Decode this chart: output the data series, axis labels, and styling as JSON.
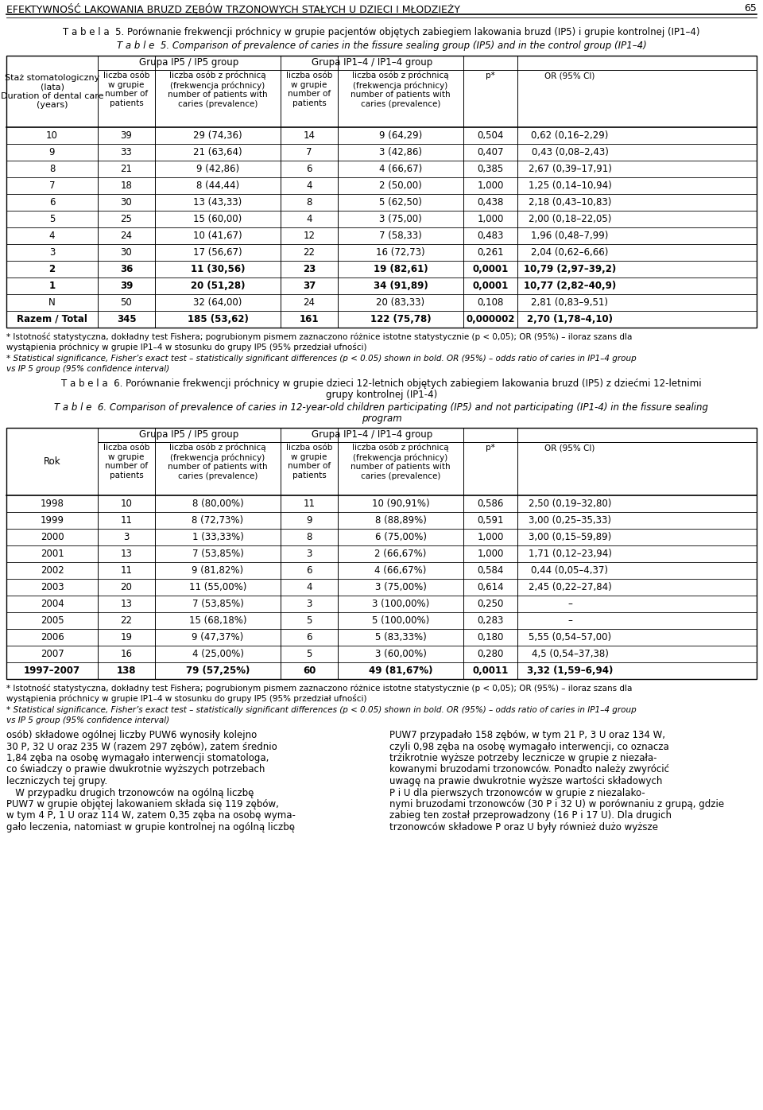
{
  "page_title": "EFEKTYWNOŚĆ LAKOWANIA BRUZD ZĘBÓW TRZONOWYCH STAŁYCH U DZIECI I MŁODZIEŻY",
  "page_number": "65",
  "table5_title_pl": "T a b e l a  5. Porównanie frekwencji próchnicy w grupie pacjentów objętych zabiegiem lakowania bruzd (IP5) i grupie kontrolnej (IP1–4)",
  "table5_title_en": "T a b l e  5. Comparison of prevalence of caries in the fissure sealing group (IP5) and in the control group (IP1–4)",
  "table5_header_group1": "Grupa IP5 / IP5 group",
  "table5_header_group2": "Grupa IP1–4 / IP1–4 group",
  "table5_col0_header": "Staż stomatologiczny\n(lata)\nDuration of dental care\n(years)",
  "table5_col1_header": "liczba osób\nw grupie\nnumber of\npatients",
  "table5_col2_header": "liczba osób z próchnicą\n(frekwencja próchnicy)\nnumber of patients with\ncaries (prevalence)",
  "table5_col3_header": "liczba osób\nw grupie\nnumber of\npatients",
  "table5_col4_header": "liczba osób z próchnicą\n(frekwencja próchnicy)\nnumber of patients with\ncaries (prevalence)",
  "table5_col5_header": "p*",
  "table5_col6_header": "OR (95% CI)",
  "table5_data": [
    [
      "10",
      "39",
      "29 (74,36)",
      "14",
      "9 (64,29)",
      "0,504",
      "0,62 (0,16–2,29)"
    ],
    [
      "9",
      "33",
      "21 (63,64)",
      "7",
      "3 (42,86)",
      "0,407",
      "0,43 (0,08–2,43)"
    ],
    [
      "8",
      "21",
      "9 (42,86)",
      "6",
      "4 (66,67)",
      "0,385",
      "2,67 (0,39–17,91)"
    ],
    [
      "7",
      "18",
      "8 (44,44)",
      "4",
      "2 (50,00)",
      "1,000",
      "1,25 (0,14–10,94)"
    ],
    [
      "6",
      "30",
      "13 (43,33)",
      "8",
      "5 (62,50)",
      "0,438",
      "2,18 (0,43–10,83)"
    ],
    [
      "5",
      "25",
      "15 (60,00)",
      "4",
      "3 (75,00)",
      "1,000",
      "2,00 (0,18–22,05)"
    ],
    [
      "4",
      "24",
      "10 (41,67)",
      "12",
      "7 (58,33)",
      "0,483",
      "1,96 (0,48–7,99)"
    ],
    [
      "3",
      "30",
      "17 (56,67)",
      "22",
      "16 (72,73)",
      "0,261",
      "2,04 (0,62–6,66)"
    ],
    [
      "2",
      "36",
      "11 (30,56)",
      "23",
      "19 (82,61)",
      "0,0001",
      "10,79 (2,97–39,2)"
    ],
    [
      "1",
      "39",
      "20 (51,28)",
      "37",
      "34 (91,89)",
      "0,0001",
      "10,77 (2,82–40,9)"
    ],
    [
      "N",
      "50",
      "32 (64,00)",
      "24",
      "20 (83,33)",
      "0,108",
      "2,81 (0,83–9,51)"
    ],
    [
      "Razem / Total",
      "345",
      "185 (53,62)",
      "161",
      "122 (75,78)",
      "0,000002",
      "2,70 (1,78–4,10)"
    ]
  ],
  "table5_bold_rows": [
    8,
    9,
    11
  ],
  "table5_footnote1": "* Istotność statystyczna, dokładny test Fishera; pogrubionym pismem zaznaczono różnice istotne statystycznie (p < 0,05); OR (95%) – iloraz szans dla",
  "table5_footnote2": "wystąpienia próchnicy w grupie IP1–4 w stosunku do grupy IP5 (95% przedział ufności)",
  "table5_footnote3": "* Statistical significance, Fisher’s exact test – statistically significant differences (p < 0.05) shown in bold. OR (95%) – odds ratio of caries in IP1–4 group",
  "table5_footnote4": "vs IP 5 group (95% confidence interval)",
  "table6_title_pl1": "T a b e l a  6. Porównanie frekwencji próchnicy w grupie dzieci 12-letnich objętych zabiegiem lakowania bruzd (IP5) z dziećmi 12-letnimi",
  "table6_title_pl2": "grupy kontrolnej (IP1-4)",
  "table6_title_en1": "T a b l e  6. Comparison of prevalence of caries in 12-year-old children participating (IP5) and not participating (IP1-4) in the fissure sealing",
  "table6_title_en2": "program",
  "table6_header_group1": "Grupa IP5 / IP5 group",
  "table6_header_group2": "Grupa IP1–4 / IP1–4 group",
  "table6_col0_header": "Rok",
  "table6_col1_header": "liczba osób\nw grupie\nnumber of\npatients",
  "table6_col2_header": "liczba osób z próchnicą\n(frekwencja próchnicy)\nnumber of patients with\ncaries (prevalence)",
  "table6_col3_header": "liczba osób\nw grupie\nnumber of\npatients",
  "table6_col4_header": "liczba osób z próchnicą\n(frekwencja próchnicy)\nnumber of patients with\ncaries (prevalence)",
  "table6_col5_header": "p*",
  "table6_col6_header": "OR (95% CI)",
  "table6_data": [
    [
      "1998",
      "10",
      "8 (80,00%)",
      "11",
      "10 (90,91%)",
      "0,586",
      "2,50 (0,19–32,80)"
    ],
    [
      "1999",
      "11",
      "8 (72,73%)",
      "9",
      "8 (88,89%)",
      "0,591",
      "3,00 (0,25–35,33)"
    ],
    [
      "2000",
      "3",
      "1 (33,33%)",
      "8",
      "6 (75,00%)",
      "1,000",
      "3,00 (0,15–59,89)"
    ],
    [
      "2001",
      "13",
      "7 (53,85%)",
      "3",
      "2 (66,67%)",
      "1,000",
      "1,71 (0,12–23,94)"
    ],
    [
      "2002",
      "11",
      "9 (81,82%)",
      "6",
      "4 (66,67%)",
      "0,584",
      "0,44 (0,05–4,37)"
    ],
    [
      "2003",
      "20",
      "11 (55,00%)",
      "4",
      "3 (75,00%)",
      "0,614",
      "2,45 (0,22–27,84)"
    ],
    [
      "2004",
      "13",
      "7 (53,85%)",
      "3",
      "3 (100,00%)",
      "0,250",
      "–"
    ],
    [
      "2005",
      "22",
      "15 (68,18%)",
      "5",
      "5 (100,00%)",
      "0,283",
      "–"
    ],
    [
      "2006",
      "19",
      "9 (47,37%)",
      "6",
      "5 (83,33%)",
      "0,180",
      "5,55 (0,54–57,00)"
    ],
    [
      "2007",
      "16",
      "4 (25,00%)",
      "5",
      "3 (60,00%)",
      "0,280",
      "4,5 (0,54–37,38)"
    ],
    [
      "1997–2007",
      "138",
      "79 (57,25%)",
      "60",
      "49 (81,67%)",
      "0,0011",
      "3,32 (1,59–6,94)"
    ]
  ],
  "table6_bold_rows": [
    10
  ],
  "table6_footnote1": "* Istotność statystyczna, dokładny test Fishera; pogrubionym pismem zaznaczono różnice istotne statystycznie (p < 0,05); OR (95%) – iloraz szans dla",
  "table6_footnote2": "wystąpienia próchnicy w grupie IP1–4 w stosunku do grupy IP5 (95% przedział ufności)",
  "table6_footnote3": "* Statistical significance, Fisher’s exact test – statistically significant differences (p < 0.05) shown in bold. OR (95%) – odds ratio of caries in IP1–4 group",
  "table6_footnote4": "vs IP 5 group (95% confidence interval)",
  "bottom_left_lines": [
    "osób) składowe ogólnej liczby PUW6 wynosiły kolejno",
    "30 P, 32 U oraz 235 W (razem 297 zębów), zatem średnio",
    "1,84 zęba na osobę wymagało interwencji stomatologa,",
    "co świadczy o prawie dwukrotnie wyższych potrzebach",
    "leczniczych tej grupy.",
    "   W przypadku drugich trzonowców na ogólną liczbę",
    "PUW7 w grupie objętej lakowaniem składa się 119 zębów,",
    "w tym 4 P, 1 U oraz 114 W, zatem 0,35 zęba na osobę wyma-",
    "gało leczenia, natomiast w grupie kontrolnej na ogólną liczbę"
  ],
  "bottom_right_lines": [
    "PUW7 przypadało 158 zębów, w tym 21 P, 3 U oraz 134 W,",
    "czyli 0,98 zęba na osobę wymagało interwencji, co oznacza",
    "trżikrotnie wyższe potrzeby lecznicze w grupie z niezała-",
    "kowanymi bruzodami trzonowców. Ponadto należy zwyrócić",
    "uwagę na prawie dwukrotnie wyższe wartości składowych",
    "P i U dla pierwszych trzonowców w grupie z niezalako-",
    "nymi bruzodami trzonowców (30 P i 32 U) w porównaniu z grupą, gdzie",
    "zabieg ten został przeprowadzony (16 P i 17 U). Dla drugich",
    "trzonowców składowe P oraz U były również dużo wyższe"
  ]
}
